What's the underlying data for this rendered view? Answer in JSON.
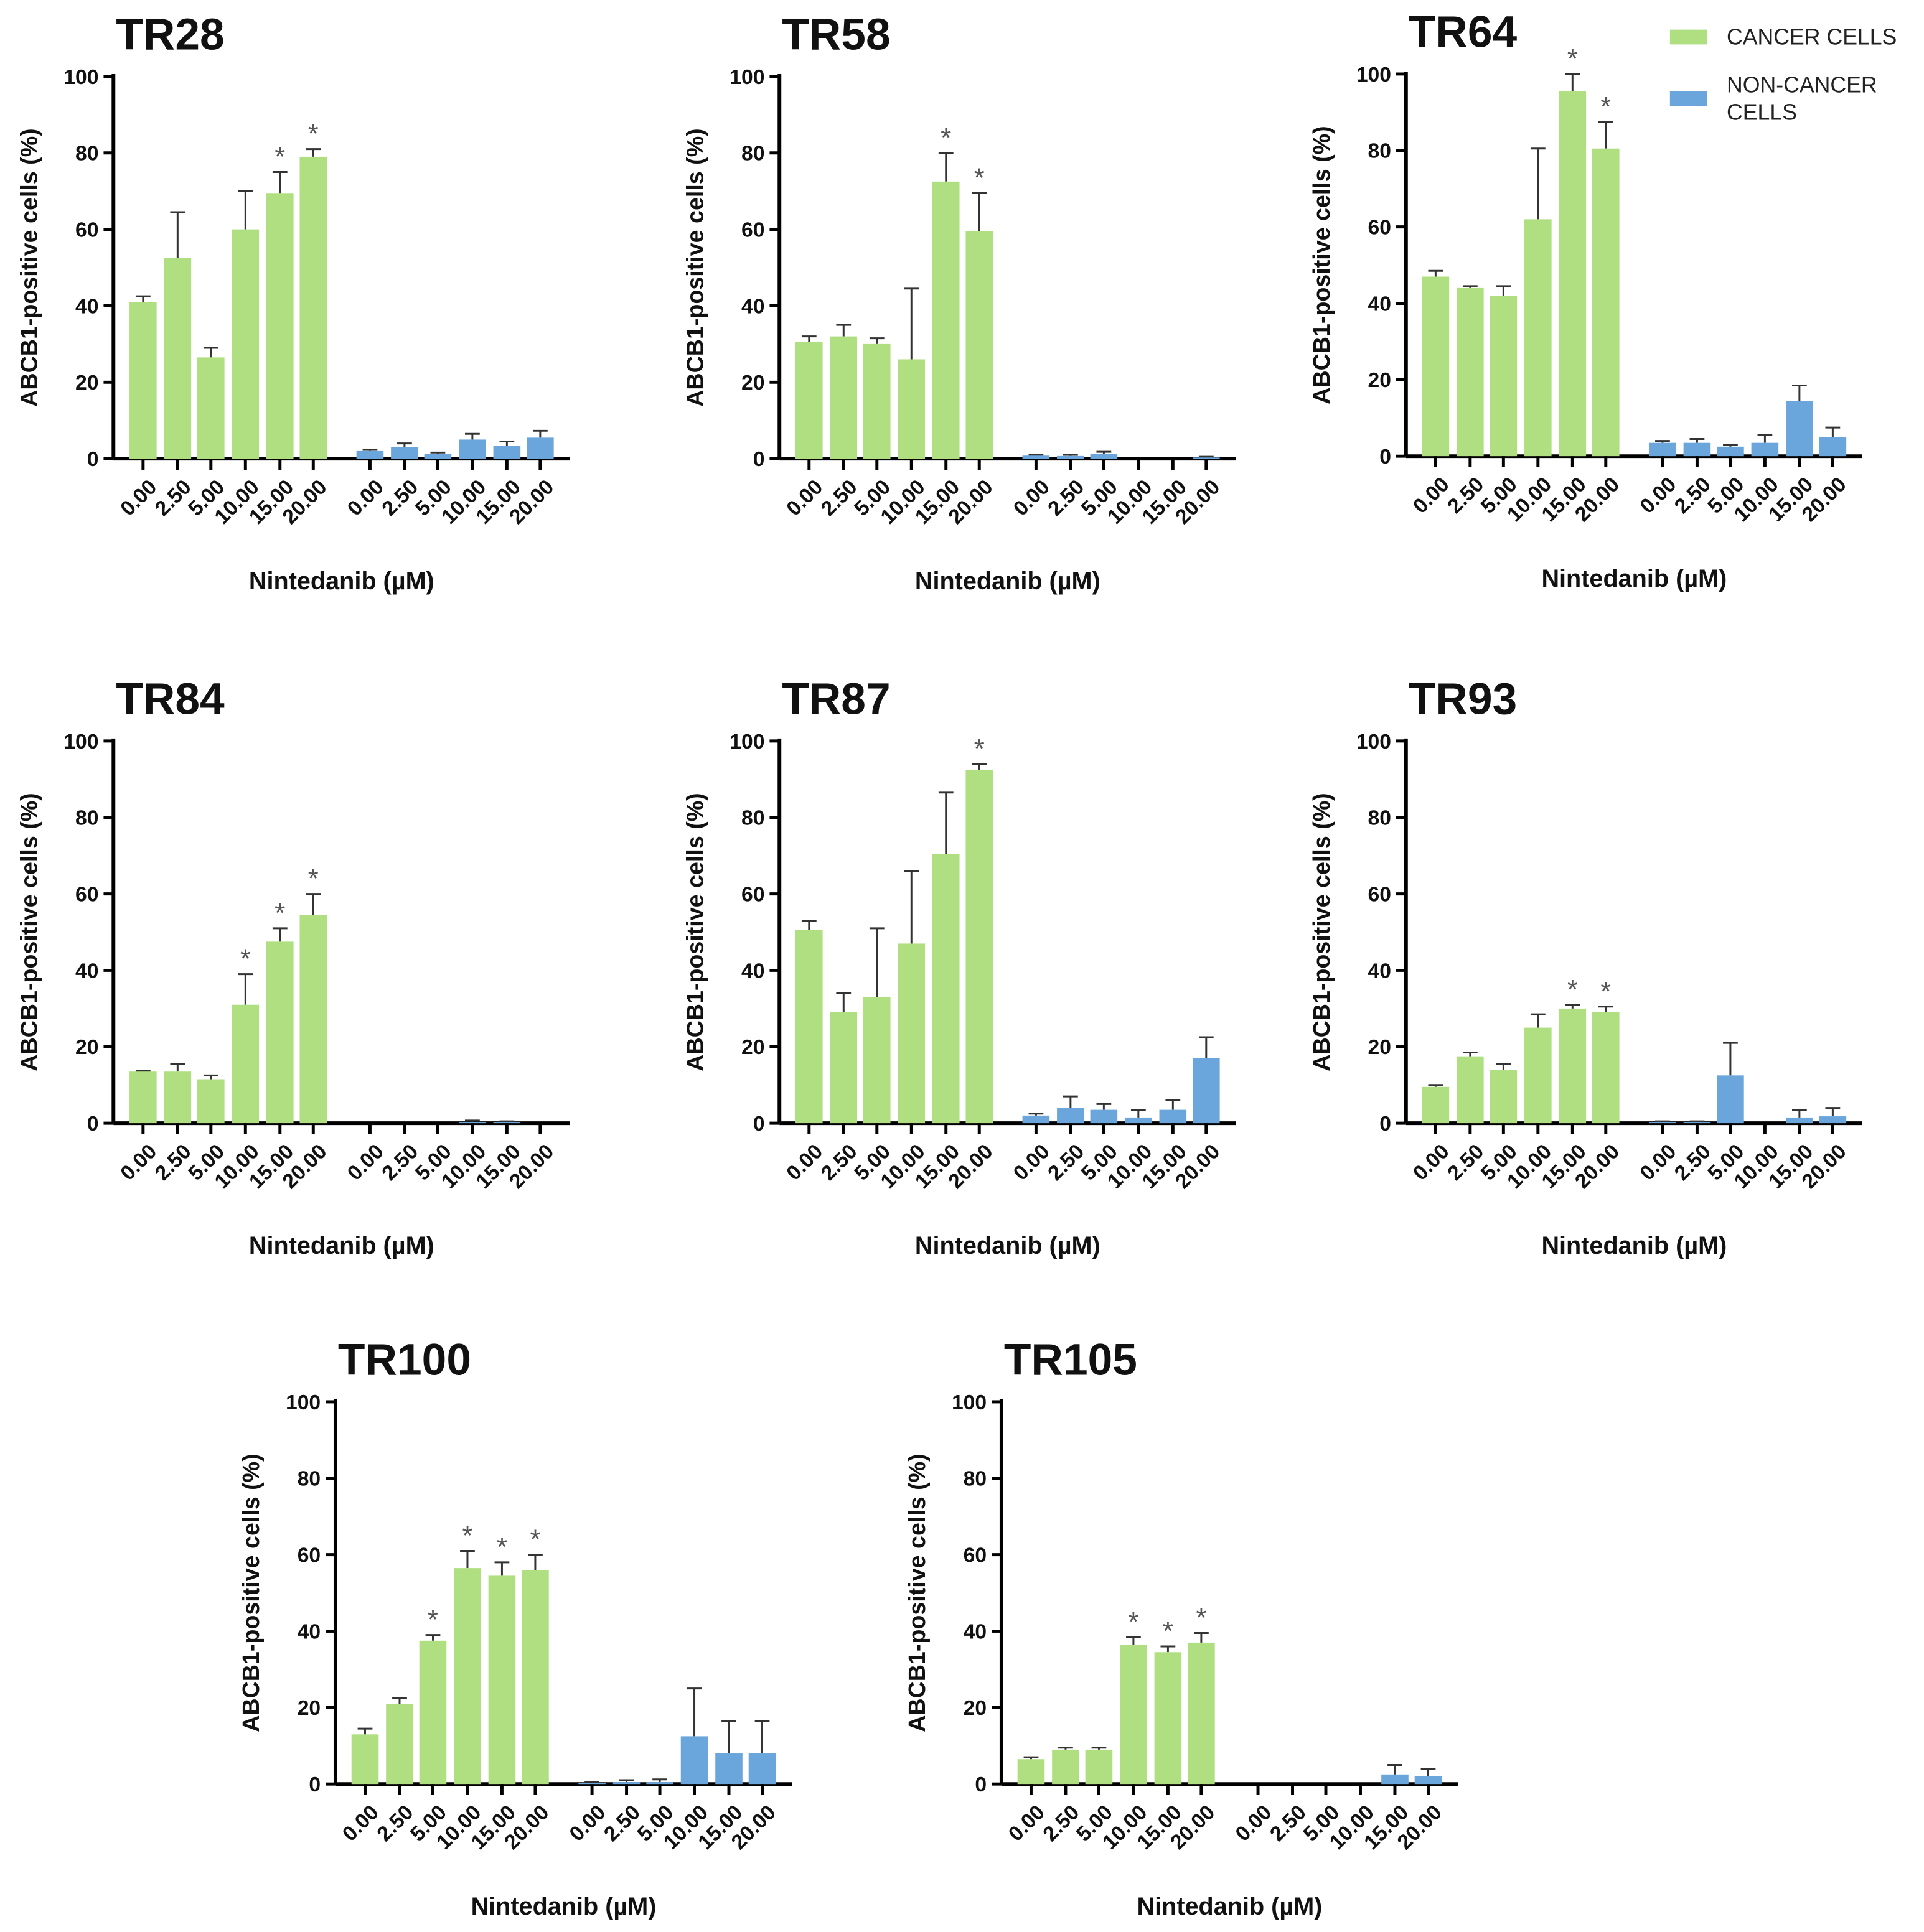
{
  "chart_data": [
    {
      "type": "bar",
      "title": "TR28",
      "ylabel": "ABCB1-positive cells (%)",
      "xlabel": "Nintedanib (µM)",
      "ylim": [
        0,
        100
      ],
      "yticks": [
        0,
        20,
        40,
        60,
        80,
        100
      ],
      "categories": [
        "0.00",
        "2.50",
        "5.00",
        "10.00",
        "15.00",
        "20.00"
      ],
      "series": [
        {
          "name": "CANCER CELLS",
          "values": [
            41,
            52.5,
            26.5,
            60,
            69.5,
            79
          ],
          "err_upper": [
            42.5,
            64.5,
            29,
            70,
            75,
            81
          ],
          "significant": [
            false,
            false,
            false,
            false,
            true,
            true
          ]
        },
        {
          "name": "NON-CANCER CELLS",
          "values": [
            2,
            3,
            1.2,
            5,
            3.3,
            5.5
          ],
          "err_upper": [
            2.3,
            4,
            1.6,
            6.5,
            4.5,
            7.3
          ],
          "significant": [
            false,
            false,
            false,
            false,
            false,
            false
          ]
        }
      ]
    },
    {
      "type": "bar",
      "title": "TR58",
      "ylabel": "ABCB1-positive cells (%)",
      "xlabel": "Nintedanib (µM)",
      "ylim": [
        0,
        100
      ],
      "yticks": [
        0,
        20,
        40,
        60,
        80,
        100
      ],
      "categories": [
        "0.00",
        "2.50",
        "5.00",
        "10.00",
        "15.00",
        "20.00"
      ],
      "series": [
        {
          "name": "CANCER CELLS",
          "values": [
            30.5,
            32,
            30,
            26,
            72.5,
            59.5
          ],
          "err_upper": [
            32,
            35,
            31.5,
            44.5,
            80,
            69.5
          ],
          "significant": [
            false,
            false,
            false,
            false,
            true,
            true
          ]
        },
        {
          "name": "NON-CANCER CELLS",
          "values": [
            0.8,
            0.7,
            1.2,
            0,
            0,
            0.3
          ],
          "err_upper": [
            1,
            1,
            1.8,
            0,
            0,
            0.5
          ],
          "significant": [
            false,
            false,
            false,
            false,
            false,
            false
          ]
        }
      ]
    },
    {
      "type": "bar",
      "title": "TR64",
      "ylabel": "ABCB1-positive cells (%)",
      "xlabel": "Nintedanib (µM)",
      "ylim": [
        0,
        100
      ],
      "yticks": [
        0,
        20,
        40,
        60,
        80,
        100
      ],
      "categories": [
        "0.00",
        "2.50",
        "5.00",
        "10.00",
        "15.00",
        "20.00"
      ],
      "series": [
        {
          "name": "CANCER CELLS",
          "values": [
            47,
            44,
            42,
            62,
            95.5,
            80.5
          ],
          "err_upper": [
            48.5,
            44.5,
            44.5,
            80.5,
            100,
            87.5
          ],
          "significant": [
            false,
            false,
            false,
            false,
            true,
            true
          ]
        },
        {
          "name": "NON-CANCER CELLS",
          "values": [
            3.5,
            3.5,
            2.5,
            3.5,
            14.5,
            5
          ],
          "err_upper": [
            4,
            4.5,
            3,
            5.5,
            18.5,
            7.5
          ],
          "significant": [
            false,
            false,
            false,
            false,
            false,
            false
          ]
        }
      ]
    },
    {
      "type": "bar",
      "title": "TR84",
      "ylabel": "ABCB1-positive cells (%)",
      "xlabel": "Nintedanib (µM)",
      "ylim": [
        0,
        100
      ],
      "yticks": [
        0,
        20,
        40,
        60,
        80,
        100
      ],
      "categories": [
        "0.00",
        "2.50",
        "5.00",
        "10.00",
        "15.00",
        "20.00"
      ],
      "series": [
        {
          "name": "CANCER CELLS",
          "values": [
            13.5,
            13.5,
            11.5,
            31,
            47.5,
            54.5
          ],
          "err_upper": [
            13.7,
            15.5,
            12.5,
            39,
            51,
            60
          ],
          "significant": [
            false,
            false,
            false,
            true,
            true,
            true
          ]
        },
        {
          "name": "NON-CANCER CELLS",
          "values": [
            0,
            0,
            0,
            0.3,
            0.2,
            0
          ],
          "err_upper": [
            0,
            0,
            0,
            0.7,
            0.5,
            0
          ],
          "significant": [
            false,
            false,
            false,
            false,
            false,
            false
          ]
        }
      ]
    },
    {
      "type": "bar",
      "title": "TR87",
      "ylabel": "ABCB1-positive cells (%)",
      "xlabel": "Nintedanib (µM)",
      "ylim": [
        0,
        100
      ],
      "yticks": [
        0,
        20,
        40,
        60,
        80,
        100
      ],
      "categories": [
        "0.00",
        "2.50",
        "5.00",
        "10.00",
        "15.00",
        "20.00"
      ],
      "series": [
        {
          "name": "CANCER CELLS",
          "values": [
            50.5,
            29,
            33,
            47,
            70.5,
            92.5
          ],
          "err_upper": [
            53,
            34,
            51,
            66,
            86.5,
            94
          ],
          "significant": [
            false,
            false,
            false,
            false,
            false,
            true
          ]
        },
        {
          "name": "NON-CANCER CELLS",
          "values": [
            2,
            4,
            3.5,
            1.5,
            3.5,
            17
          ],
          "err_upper": [
            2.5,
            7,
            5,
            3.5,
            6,
            22.5
          ],
          "significant": [
            false,
            false,
            false,
            false,
            false,
            false
          ]
        }
      ]
    },
    {
      "type": "bar",
      "title": "TR93",
      "ylabel": "ABCB1-positive cells (%)",
      "xlabel": "Nintedanib (µM)",
      "ylim": [
        0,
        100
      ],
      "yticks": [
        0,
        20,
        40,
        60,
        80,
        100
      ],
      "categories": [
        "0.00",
        "2.50",
        "5.00",
        "10.00",
        "15.00",
        "20.00"
      ],
      "series": [
        {
          "name": "CANCER CELLS",
          "values": [
            9.5,
            17.5,
            14,
            25,
            30,
            29
          ],
          "err_upper": [
            10,
            18.5,
            15.5,
            28.5,
            31,
            30.5
          ],
          "significant": [
            false,
            false,
            false,
            false,
            true,
            true
          ]
        },
        {
          "name": "NON-CANCER CELLS",
          "values": [
            0.3,
            0.3,
            12.5,
            0,
            1.5,
            1.8
          ],
          "err_upper": [
            0.5,
            0.5,
            21,
            0,
            3.5,
            4
          ],
          "significant": [
            false,
            false,
            false,
            false,
            false,
            false
          ]
        }
      ]
    },
    {
      "type": "bar",
      "title": "TR100",
      "ylabel": "ABCB1-positive cells (%)",
      "xlabel": "Nintedanib (µM)",
      "ylim": [
        0,
        100
      ],
      "yticks": [
        0,
        20,
        40,
        60,
        80,
        100
      ],
      "categories": [
        "0.00",
        "2.50",
        "5.00",
        "10.00",
        "15.00",
        "20.00"
      ],
      "series": [
        {
          "name": "CANCER CELLS",
          "values": [
            13,
            21,
            37.5,
            56.5,
            54.5,
            56
          ],
          "err_upper": [
            14.5,
            22.5,
            39,
            61,
            58,
            60
          ],
          "significant": [
            false,
            false,
            true,
            true,
            true,
            true
          ]
        },
        {
          "name": "NON-CANCER CELLS",
          "values": [
            0.3,
            0.5,
            0.5,
            12.5,
            8,
            8
          ],
          "err_upper": [
            0.5,
            1,
            1.2,
            25,
            16.5,
            16.5
          ],
          "significant": [
            false,
            false,
            false,
            false,
            false,
            false
          ]
        }
      ]
    },
    {
      "type": "bar",
      "title": "TR105",
      "ylabel": "ABCB1-positive cells (%)",
      "xlabel": "Nintedanib (µM)",
      "ylim": [
        0,
        100
      ],
      "yticks": [
        0,
        20,
        40,
        60,
        80,
        100
      ],
      "categories": [
        "0.00",
        "2.50",
        "5.00",
        "10.00",
        "15.00",
        "20.00"
      ],
      "series": [
        {
          "name": "CANCER CELLS",
          "values": [
            6.5,
            9,
            9,
            36.5,
            34.5,
            37
          ],
          "err_upper": [
            7,
            9.5,
            9.5,
            38.5,
            36,
            39.5
          ],
          "significant": [
            false,
            false,
            false,
            true,
            true,
            true
          ]
        },
        {
          "name": "NON-CANCER CELLS",
          "values": [
            0,
            0,
            0,
            0,
            2.5,
            2
          ],
          "err_upper": [
            0,
            0,
            0,
            0,
            5,
            4
          ],
          "significant": [
            false,
            false,
            false,
            false,
            false,
            false
          ]
        }
      ]
    }
  ],
  "legend": {
    "position": "top-right",
    "items": [
      {
        "label_lines": [
          "CANCER CELLS"
        ],
        "color": "#b0df82"
      },
      {
        "label_lines": [
          "NON-CANCER",
          "CELLS"
        ],
        "color": "#6aa6dc"
      }
    ]
  },
  "significance_marker": "*"
}
